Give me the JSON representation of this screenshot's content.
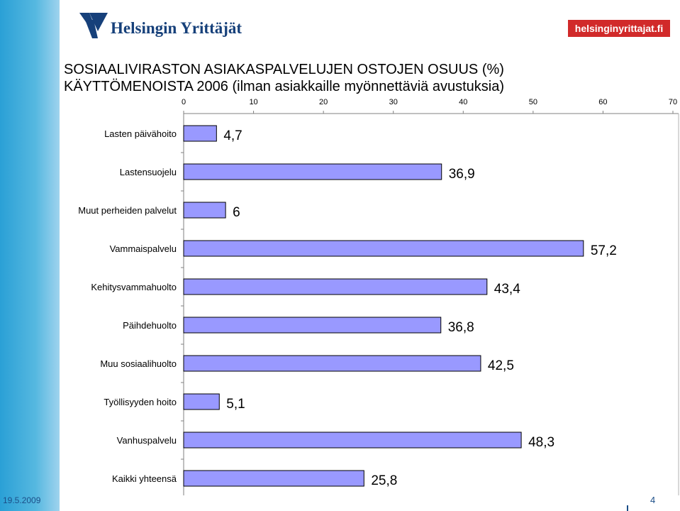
{
  "header": {
    "logo_text": "Helsingin Yrittäjät",
    "website_badge": "helsinginyrittajat.fi"
  },
  "title": {
    "line1": "SOSIAALIVIRASTON ASIAKASPALVELUJEN OSTOJEN OSUUS (%)",
    "line2": "KÄYTTÖMENOISTA 2006  (ilman asiakkaille myönnettäviä avustuksia)"
  },
  "footer": {
    "date": "19.5.2009",
    "page_number": "4"
  },
  "colors": {
    "bar_fill": "#9999ff",
    "bar_stroke": "#000000",
    "sidebar": "#2aa0d6",
    "badge": "#d12a2a",
    "logo_text": "#16407a"
  },
  "chart_data": {
    "type": "bar",
    "orientation": "horizontal",
    "categories": [
      "Lasten päivähoito",
      "Lastensuojelu",
      "Muut perheiden palvelut",
      "Vammaispalvelu",
      "Kehitysvammahuolto",
      "Päihdehuolto",
      "Muu sosiaalihuolto",
      "Työllisyyden hoito",
      "Vanhuspalvelu",
      "Kaikki yhteensä"
    ],
    "values": [
      4.7,
      36.9,
      6,
      57.2,
      43.4,
      36.8,
      42.5,
      5.1,
      48.3,
      25.8
    ],
    "value_labels": [
      "4,7",
      "36,9",
      "6",
      "57,2",
      "43,4",
      "36,8",
      "42,5",
      "5,1",
      "48,3",
      "25,8"
    ],
    "xlim": [
      0,
      70
    ],
    "x_ticks": [
      "0",
      "10",
      "20",
      "30",
      "40",
      "50",
      "60",
      "70"
    ],
    "x_axis_position": "top",
    "grid": false,
    "legend": "none"
  }
}
